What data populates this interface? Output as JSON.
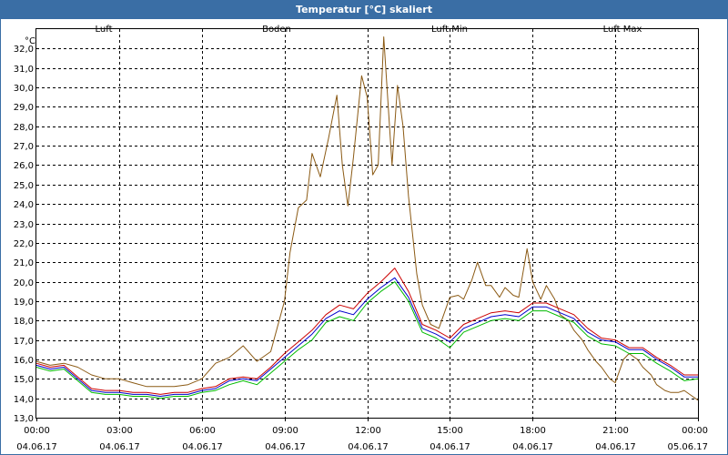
{
  "window": {
    "title": "Temperatur [°C] skaliert"
  },
  "chart_data": {
    "type": "line",
    "title": "Temperatur [°C] skaliert",
    "ylabel": "°C",
    "xlabel": "",
    "ylim": [
      13.0,
      33.0
    ],
    "xlim": [
      0,
      24
    ],
    "grid": true,
    "legend_position": "top",
    "y_ticks": [
      "13,0",
      "14,0",
      "15,0",
      "16,0",
      "17,0",
      "18,0",
      "19,0",
      "20,0",
      "21,0",
      "22,0",
      "23,0",
      "24,0",
      "25,0",
      "26,0",
      "27,0",
      "28,0",
      "29,0",
      "30,0",
      "31,0",
      "32,0"
    ],
    "x_ticks": [
      {
        "time": "00:00",
        "date": "04.06.17"
      },
      {
        "time": "03:00",
        "date": "04.06.17"
      },
      {
        "time": "06:00",
        "date": "04.06.17"
      },
      {
        "time": "09:00",
        "date": "04.06.17"
      },
      {
        "time": "12:00",
        "date": "04.06.17"
      },
      {
        "time": "15:00",
        "date": "04.06.17"
      },
      {
        "time": "18:00",
        "date": "04.06.17"
      },
      {
        "time": "21:00",
        "date": "04.06.17"
      },
      {
        "time": "00:00",
        "date": "05.06.17"
      }
    ],
    "series": [
      {
        "name": "Luft",
        "color": "#0000cc",
        "x": [
          0,
          0.5,
          1,
          1.5,
          2,
          2.5,
          3,
          3.5,
          4,
          4.5,
          5,
          5.5,
          6,
          6.5,
          7,
          7.5,
          8,
          8.5,
          9,
          9.5,
          10,
          10.5,
          11,
          11.5,
          12,
          12.5,
          13,
          13.5,
          14,
          14.5,
          15,
          15.5,
          16,
          16.5,
          17,
          17.5,
          18,
          18.5,
          19,
          19.5,
          20,
          20.5,
          21,
          21.5,
          22,
          22.5,
          23,
          23.5,
          24
        ],
        "y": [
          15.7,
          15.5,
          15.6,
          15.0,
          14.4,
          14.3,
          14.3,
          14.2,
          14.2,
          14.1,
          14.2,
          14.2,
          14.4,
          14.5,
          14.9,
          15.0,
          14.9,
          15.5,
          16.1,
          16.7,
          17.3,
          18.1,
          18.5,
          18.3,
          19.1,
          19.7,
          20.2,
          19.2,
          17.6,
          17.3,
          16.9,
          17.6,
          17.9,
          18.2,
          18.3,
          18.2,
          18.7,
          18.7,
          18.4,
          18.1,
          17.4,
          17.0,
          16.9,
          16.5,
          16.5,
          16.0,
          15.6,
          15.1,
          15.1
        ]
      },
      {
        "name": "Boden",
        "color": "#8b5a14",
        "x": [
          0,
          0.5,
          1,
          1.5,
          2,
          2.5,
          3,
          3.5,
          4,
          4.5,
          5,
          5.5,
          6,
          6.5,
          7,
          7.5,
          8,
          8.5,
          9,
          9.2,
          9.5,
          9.8,
          10,
          10.3,
          10.6,
          10.9,
          11.1,
          11.3,
          11.5,
          11.8,
          12,
          12.2,
          12.4,
          12.6,
          12.9,
          13.1,
          13.3,
          13.5,
          13.8,
          14,
          14.3,
          14.6,
          15,
          15.3,
          15.5,
          15.8,
          16,
          16.3,
          16.5,
          16.8,
          17,
          17.3,
          17.5,
          17.8,
          18,
          18.3,
          18.5,
          18.8,
          19,
          19.3,
          19.5,
          19.8,
          20,
          20.3,
          20.5,
          20.8,
          21,
          21.3,
          21.5,
          21.8,
          22,
          22.3,
          22.5,
          22.8,
          23,
          23.3,
          23.5,
          23.8,
          24
        ],
        "y": [
          15.9,
          15.7,
          15.8,
          15.6,
          15.2,
          15.0,
          15.0,
          14.8,
          14.6,
          14.6,
          14.6,
          14.7,
          15.0,
          15.8,
          16.1,
          16.7,
          15.9,
          16.4,
          19.0,
          21.5,
          23.8,
          24.2,
          26.6,
          25.4,
          27.4,
          29.6,
          26.0,
          23.9,
          26.4,
          30.6,
          29.5,
          25.5,
          26.0,
          32.6,
          26.0,
          30.1,
          28.0,
          24.4,
          20.4,
          18.8,
          17.8,
          17.6,
          19.2,
          19.3,
          19.1,
          20.1,
          21.0,
          19.8,
          19.8,
          19.2,
          19.7,
          19.3,
          19.2,
          21.7,
          20.0,
          19.1,
          19.8,
          19.1,
          18.3,
          18.0,
          17.5,
          17.0,
          16.5,
          15.9,
          15.6,
          15.0,
          14.8,
          16.0,
          16.3,
          16.0,
          15.6,
          15.2,
          14.7,
          14.4,
          14.3,
          14.3,
          14.4,
          14.1,
          13.9
        ]
      },
      {
        "name": "Luft Min",
        "color": "#00bb00",
        "x": [
          0,
          0.5,
          1,
          1.5,
          2,
          2.5,
          3,
          3.5,
          4,
          4.5,
          5,
          5.5,
          6,
          6.5,
          7,
          7.5,
          8,
          8.5,
          9,
          9.5,
          10,
          10.5,
          11,
          11.5,
          12,
          12.5,
          13,
          13.5,
          14,
          14.5,
          15,
          15.5,
          16,
          16.5,
          17,
          17.5,
          18,
          18.5,
          19,
          19.5,
          20,
          20.5,
          21,
          21.5,
          22,
          22.5,
          23,
          23.5,
          24
        ],
        "y": [
          15.6,
          15.4,
          15.5,
          14.9,
          14.3,
          14.2,
          14.2,
          14.1,
          14.1,
          14.0,
          14.1,
          14.1,
          14.3,
          14.4,
          14.7,
          14.9,
          14.7,
          15.3,
          15.9,
          16.5,
          17.0,
          17.9,
          18.2,
          18.0,
          18.9,
          19.5,
          20.0,
          19.0,
          17.4,
          17.1,
          16.6,
          17.4,
          17.7,
          18.0,
          18.1,
          18.0,
          18.5,
          18.5,
          18.2,
          17.9,
          17.2,
          16.8,
          16.7,
          16.3,
          16.3,
          15.8,
          15.4,
          14.9,
          15.0
        ]
      },
      {
        "name": "Luft Max",
        "color": "#cc0000",
        "x": [
          0,
          0.5,
          1,
          1.5,
          2,
          2.5,
          3,
          3.5,
          4,
          4.5,
          5,
          5.5,
          6,
          6.5,
          7,
          7.5,
          8,
          8.5,
          9,
          9.5,
          10,
          10.5,
          11,
          11.5,
          12,
          12.5,
          13,
          13.5,
          14,
          14.5,
          15,
          15.5,
          16,
          16.5,
          17,
          17.5,
          18,
          18.5,
          19,
          19.5,
          20,
          20.5,
          21,
          21.5,
          22,
          22.5,
          23,
          23.5,
          24
        ],
        "y": [
          15.8,
          15.6,
          15.7,
          15.1,
          14.5,
          14.4,
          14.4,
          14.3,
          14.3,
          14.2,
          14.3,
          14.3,
          14.5,
          14.6,
          15.0,
          15.1,
          15.0,
          15.6,
          16.3,
          16.9,
          17.5,
          18.3,
          18.8,
          18.6,
          19.4,
          20.0,
          20.7,
          19.5,
          17.8,
          17.5,
          17.1,
          17.8,
          18.1,
          18.4,
          18.5,
          18.4,
          18.9,
          18.9,
          18.6,
          18.3,
          17.6,
          17.1,
          17.0,
          16.6,
          16.6,
          16.1,
          15.7,
          15.2,
          15.2
        ]
      }
    ]
  }
}
